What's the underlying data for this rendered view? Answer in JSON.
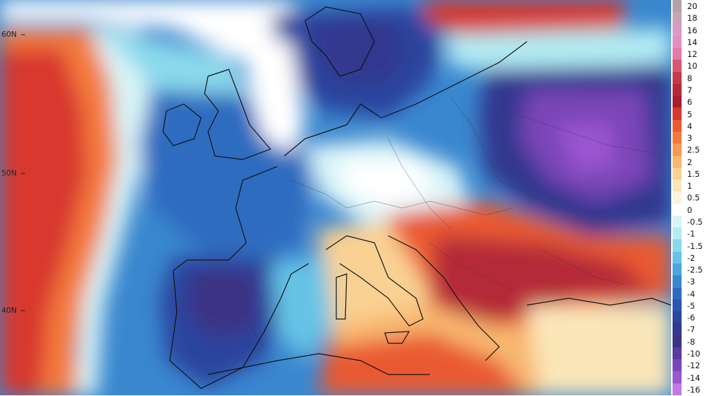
{
  "map": {
    "lat_labels": [
      "60N",
      "50N",
      "40N"
    ]
  },
  "legend": {
    "items": [
      {
        "label": "20",
        "color": "#b3a3a8"
      },
      {
        "label": "18",
        "color": "#c7a3b4"
      },
      {
        "label": "16",
        "color": "#d99cc4"
      },
      {
        "label": "14",
        "color": "#e28fc6"
      },
      {
        "label": "12",
        "color": "#e37aa9"
      },
      {
        "label": "10",
        "color": "#d9566f"
      },
      {
        "label": "8",
        "color": "#c43a4b"
      },
      {
        "label": "7",
        "color": "#b52a38"
      },
      {
        "label": "6",
        "color": "#a81e2c"
      },
      {
        "label": "5",
        "color": "#d8372e"
      },
      {
        "label": "4",
        "color": "#ea5a33"
      },
      {
        "label": "3",
        "color": "#f47a3c"
      },
      {
        "label": "2.5",
        "color": "#f79a52"
      },
      {
        "label": "2",
        "color": "#f8b76f"
      },
      {
        "label": "1.5",
        "color": "#f9d193"
      },
      {
        "label": "1",
        "color": "#fbe6b8"
      },
      {
        "label": "0.5",
        "color": "#fdf4de"
      },
      {
        "label": "0",
        "color": "#ffffff"
      },
      {
        "label": "-0.5",
        "color": "#d8f4f8"
      },
      {
        "label": "-1",
        "color": "#b2ebf3"
      },
      {
        "label": "-1.5",
        "color": "#8ad9ec"
      },
      {
        "label": "-2",
        "color": "#66c3e6"
      },
      {
        "label": "-2.5",
        "color": "#4aa6dc"
      },
      {
        "label": "-3",
        "color": "#3a87cf"
      },
      {
        "label": "-4",
        "color": "#2e6cc0"
      },
      {
        "label": "-5",
        "color": "#2a55b0"
      },
      {
        "label": "-6",
        "color": "#2c459e"
      },
      {
        "label": "-7",
        "color": "#32398e"
      },
      {
        "label": "-8",
        "color": "#3d3385"
      },
      {
        "label": "-10",
        "color": "#5a3b9e"
      },
      {
        "label": "-12",
        "color": "#7a45b8"
      },
      {
        "label": "-14",
        "color": "#9a55d0"
      },
      {
        "label": "-16",
        "color": "#c07be3"
      }
    ]
  }
}
